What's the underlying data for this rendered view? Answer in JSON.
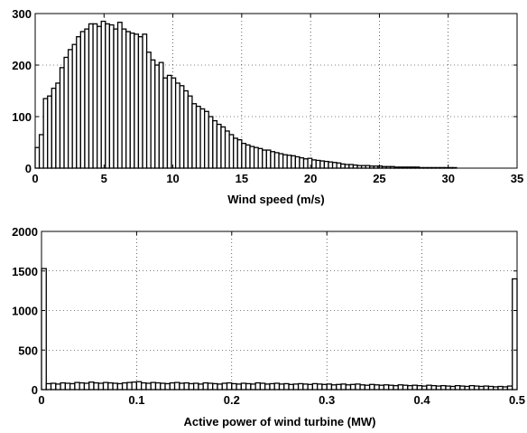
{
  "chart_data": [
    {
      "type": "bar",
      "title": "",
      "xlabel": "Wind speed  (m/s)",
      "ylabel": "",
      "xlim": [
        0,
        35
      ],
      "ylim": [
        0,
        300
      ],
      "xticks": [
        0,
        5,
        10,
        15,
        20,
        25,
        30,
        35
      ],
      "yticks": [
        0,
        100,
        200,
        300
      ],
      "grid": true,
      "bin_width": 0.3,
      "x": [
        0.15,
        0.45,
        0.75,
        1.05,
        1.35,
        1.65,
        1.95,
        2.25,
        2.55,
        2.85,
        3.15,
        3.45,
        3.75,
        4.05,
        4.35,
        4.65,
        4.95,
        5.25,
        5.55,
        5.85,
        6.15,
        6.45,
        6.75,
        7.05,
        7.35,
        7.65,
        7.95,
        8.25,
        8.55,
        8.85,
        9.15,
        9.45,
        9.75,
        10.05,
        10.35,
        10.65,
        10.95,
        11.25,
        11.55,
        11.85,
        12.15,
        12.45,
        12.75,
        13.05,
        13.35,
        13.65,
        13.95,
        14.25,
        14.55,
        14.85,
        15.15,
        15.45,
        15.75,
        16.05,
        16.35,
        16.65,
        16.95,
        17.25,
        17.55,
        17.85,
        18.15,
        18.45,
        18.75,
        19.05,
        19.35,
        19.65,
        19.95,
        20.25,
        20.55,
        20.85,
        21.15,
        21.45,
        21.75,
        22.05,
        22.35,
        22.65,
        22.95,
        23.25,
        23.55,
        23.85,
        24.15,
        24.45,
        24.75,
        25.05,
        25.35,
        25.65,
        25.95,
        26.25,
        26.55,
        26.85,
        27.15,
        27.45,
        27.75,
        28.05,
        28.35,
        28.65,
        28.95,
        29.25,
        29.55,
        29.85,
        30.15,
        30.45
      ],
      "values": [
        40,
        65,
        135,
        140,
        155,
        165,
        195,
        215,
        230,
        240,
        255,
        265,
        270,
        280,
        280,
        275,
        285,
        280,
        278,
        270,
        283,
        270,
        265,
        262,
        260,
        255,
        260,
        225,
        210,
        200,
        205,
        175,
        180,
        175,
        165,
        160,
        150,
        140,
        125,
        120,
        115,
        110,
        100,
        92,
        85,
        80,
        72,
        65,
        58,
        55,
        48,
        45,
        42,
        40,
        38,
        35,
        35,
        32,
        30,
        28,
        26,
        25,
        24,
        22,
        20,
        18,
        19,
        16,
        15,
        14,
        13,
        12,
        11,
        10,
        8,
        7,
        7,
        6,
        5,
        5,
        5,
        4,
        4,
        4,
        3,
        3,
        3,
        2,
        2,
        2,
        2,
        2,
        2,
        1,
        1,
        1,
        1,
        1,
        1,
        1,
        1,
        1
      ]
    },
    {
      "type": "bar",
      "title": "",
      "xlabel": "Active power of wind turbine (MW)",
      "ylabel": "",
      "xlim": [
        0,
        0.5
      ],
      "ylim": [
        0,
        2000
      ],
      "xticks": [
        0,
        0.1,
        0.2,
        0.3,
        0.4,
        0.5
      ],
      "yticks": [
        0,
        500,
        1000,
        1500,
        2000
      ],
      "grid": true,
      "bin_width": 0.005,
      "x": [
        0.0025,
        0.0075,
        0.0125,
        0.0175,
        0.0225,
        0.0275,
        0.0325,
        0.0375,
        0.0425,
        0.0475,
        0.0525,
        0.0575,
        0.0625,
        0.0675,
        0.0725,
        0.0775,
        0.0825,
        0.0875,
        0.0925,
        0.0975,
        0.1025,
        0.1075,
        0.1125,
        0.1175,
        0.1225,
        0.1275,
        0.1325,
        0.1375,
        0.1425,
        0.1475,
        0.1525,
        0.1575,
        0.1625,
        0.1675,
        0.1725,
        0.1775,
        0.1825,
        0.1875,
        0.1925,
        0.1975,
        0.2025,
        0.2075,
        0.2125,
        0.2175,
        0.2225,
        0.2275,
        0.2325,
        0.2375,
        0.2425,
        0.2475,
        0.2525,
        0.2575,
        0.2625,
        0.2675,
        0.2725,
        0.2775,
        0.2825,
        0.2875,
        0.2925,
        0.2975,
        0.3025,
        0.3075,
        0.3125,
        0.3175,
        0.3225,
        0.3275,
        0.3325,
        0.3375,
        0.3425,
        0.3475,
        0.3525,
        0.3575,
        0.3625,
        0.3675,
        0.3725,
        0.3775,
        0.3825,
        0.3875,
        0.3925,
        0.3975,
        0.4025,
        0.4075,
        0.4125,
        0.4175,
        0.4225,
        0.4275,
        0.4325,
        0.4375,
        0.4425,
        0.4475,
        0.4525,
        0.4575,
        0.4625,
        0.4675,
        0.4725,
        0.4775,
        0.4825,
        0.4875,
        0.4925,
        0.4975
      ],
      "values": [
        1530,
        75,
        80,
        70,
        85,
        80,
        75,
        90,
        85,
        80,
        95,
        85,
        80,
        90,
        85,
        80,
        75,
        85,
        90,
        95,
        100,
        85,
        80,
        90,
        85,
        80,
        75,
        85,
        90,
        80,
        85,
        75,
        80,
        70,
        85,
        80,
        75,
        70,
        80,
        85,
        75,
        70,
        80,
        75,
        70,
        85,
        80,
        70,
        75,
        80,
        70,
        75,
        65,
        70,
        75,
        70,
        65,
        75,
        70,
        65,
        70,
        60,
        65,
        70,
        60,
        65,
        70,
        60,
        55,
        65,
        60,
        55,
        60,
        55,
        50,
        60,
        55,
        50,
        55,
        50,
        45,
        55,
        50,
        45,
        50,
        45,
        40,
        50,
        45,
        40,
        50,
        45,
        40,
        45,
        40,
        35,
        40,
        35,
        45,
        1400
      ]
    }
  ]
}
